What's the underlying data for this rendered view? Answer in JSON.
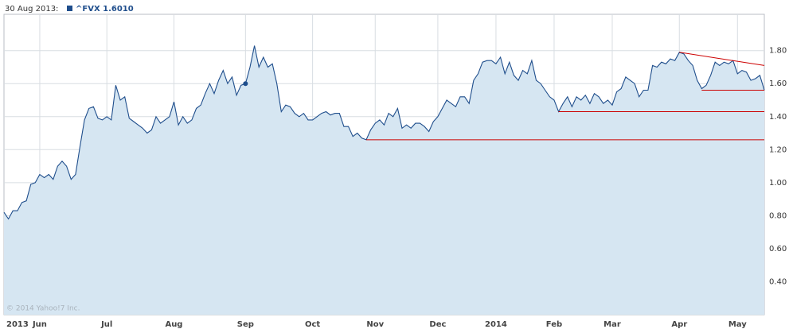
{
  "header": [
    "30 Aug 2013:",
    "^FVX 1.6010"
  ],
  "chart_data": {
    "type": "area",
    "watermark": "© 2014 Yahoo!7 Inc.",
    "color": "#1f4e8c",
    "fill": "#d6e6f2",
    "categories": [
      null,
      null,
      "2013",
      null,
      null,
      null,
      null,
      null,
      "Jun",
      null,
      null,
      null,
      null,
      null,
      null,
      null,
      null,
      null,
      null,
      null,
      null,
      null,
      null,
      "Jul",
      null,
      null,
      null,
      null,
      null,
      null,
      null,
      null,
      null,
      null,
      null,
      null,
      null,
      null,
      "Aug",
      null,
      null,
      null,
      null,
      null,
      null,
      null,
      null,
      null,
      null,
      null,
      null,
      null,
      null,
      null,
      "Sep",
      null,
      null,
      null,
      null,
      null,
      null,
      null,
      null,
      null,
      null,
      null,
      null,
      null,
      null,
      "Oct",
      null,
      null,
      null,
      null,
      null,
      null,
      null,
      null,
      null,
      null,
      null,
      null,
      null,
      "Nov",
      null,
      null,
      null,
      null,
      null,
      null,
      null,
      null,
      null,
      null,
      null,
      null,
      null,
      "Dec",
      null,
      null,
      null,
      null,
      null,
      null,
      null,
      null,
      null,
      null,
      null,
      null,
      "2014",
      null,
      null,
      null,
      null,
      null,
      null,
      null,
      null,
      null,
      null,
      null,
      null,
      "Feb",
      null,
      null,
      null,
      null,
      null,
      null,
      null,
      null,
      null,
      null,
      null,
      null,
      "Mar",
      null,
      null,
      null,
      null,
      null,
      null,
      null,
      null,
      null,
      null,
      null,
      null,
      null,
      null,
      "Apr",
      null,
      null,
      null,
      null,
      null,
      null,
      null,
      null,
      null,
      null,
      null,
      null,
      "May",
      null,
      null,
      null,
      null,
      null,
      null
    ],
    "values": [
      0.82,
      0.78,
      0.83,
      0.83,
      0.88,
      0.89,
      0.99,
      1.0,
      1.05,
      1.03,
      1.05,
      1.02,
      1.1,
      1.13,
      1.1,
      1.02,
      1.05,
      1.22,
      1.38,
      1.45,
      1.46,
      1.39,
      1.38,
      1.4,
      1.38,
      1.59,
      1.5,
      1.52,
      1.39,
      1.37,
      1.35,
      1.33,
      1.3,
      1.32,
      1.4,
      1.36,
      1.38,
      1.4,
      1.49,
      1.35,
      1.4,
      1.36,
      1.38,
      1.45,
      1.47,
      1.54,
      1.6,
      1.54,
      1.62,
      1.68,
      1.6,
      1.64,
      1.53,
      1.59,
      1.6,
      1.7,
      1.83,
      1.7,
      1.76,
      1.7,
      1.72,
      1.6,
      1.43,
      1.47,
      1.46,
      1.42,
      1.4,
      1.42,
      1.38,
      1.38,
      1.4,
      1.42,
      1.43,
      1.41,
      1.42,
      1.42,
      1.34,
      1.34,
      1.28,
      1.3,
      1.27,
      1.26,
      1.32,
      1.36,
      1.38,
      1.35,
      1.42,
      1.4,
      1.45,
      1.33,
      1.35,
      1.33,
      1.36,
      1.36,
      1.34,
      1.31,
      1.37,
      1.4,
      1.45,
      1.5,
      1.48,
      1.46,
      1.52,
      1.52,
      1.48,
      1.62,
      1.66,
      1.73,
      1.74,
      1.74,
      1.72,
      1.76,
      1.66,
      1.73,
      1.65,
      1.62,
      1.68,
      1.66,
      1.74,
      1.62,
      1.6,
      1.56,
      1.52,
      1.5,
      1.43,
      1.48,
      1.52,
      1.46,
      1.52,
      1.5,
      1.53,
      1.48,
      1.54,
      1.52,
      1.48,
      1.5,
      1.47,
      1.55,
      1.57,
      1.64,
      1.62,
      1.6,
      1.52,
      1.56,
      1.56,
      1.71,
      1.7,
      1.73,
      1.72,
      1.75,
      1.74,
      1.79,
      1.78,
      1.74,
      1.71,
      1.62,
      1.57,
      1.59,
      1.65,
      1.73,
      1.71,
      1.73,
      1.72,
      1.74,
      1.66,
      1.68,
      1.67,
      1.62,
      1.63,
      1.65,
      1.56
    ],
    "marker_index": 54,
    "ylim": [
      0.2,
      2.02
    ],
    "yticks": [
      {
        "value": 0.4,
        "label": "0.40"
      },
      {
        "value": 0.6,
        "label": "0.60"
      },
      {
        "value": 0.8,
        "label": "0.80"
      },
      {
        "value": 1.0,
        "label": "1.00"
      },
      {
        "value": 1.2,
        "label": "1.20"
      },
      {
        "value": 1.4,
        "label": "1.40"
      },
      {
        "value": 1.6,
        "label": "1.60"
      },
      {
        "value": 1.8,
        "label": "1.80"
      }
    ],
    "grid": true,
    "trend_color": "#cc0000",
    "trend_lines": [
      {
        "start": 81,
        "y0": 1.26,
        "y1": 1.26
      },
      {
        "start": 124,
        "y0": 1.43,
        "y1": 1.43
      },
      {
        "start": 156,
        "y0": 1.56,
        "y1": 1.56
      },
      {
        "start": 151,
        "y0": 1.79,
        "y1": 1.71
      }
    ]
  }
}
